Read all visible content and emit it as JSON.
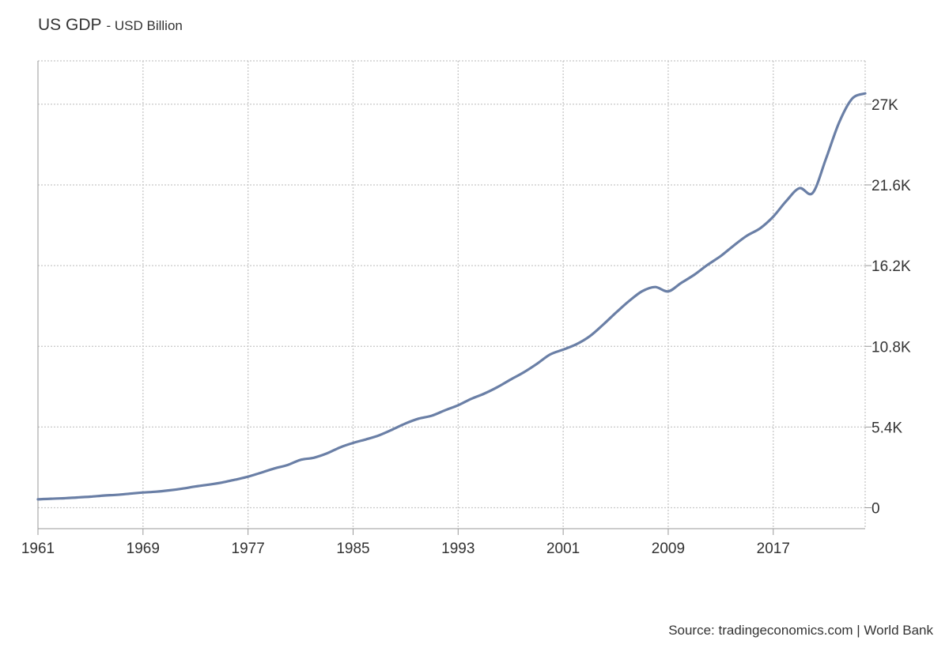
{
  "header": {
    "title": "US GDP",
    "subtitle": "- USD Billion"
  },
  "footer": {
    "source": "Source: tradingeconomics.com | World Bank"
  },
  "colors": {
    "line": "#6a7fa6",
    "grid": "#c8c8c8",
    "axis": "#999999",
    "text": "#333333"
  },
  "chart_data": {
    "type": "line",
    "title": "US GDP",
    "subtitle": "- USD Billion",
    "xlabel": "",
    "ylabel": "",
    "xlim": [
      1961,
      2024
    ],
    "ylim": [
      -1400,
      29900
    ],
    "x_ticks": [
      {
        "value": 1961,
        "label": "1961"
      },
      {
        "value": 1969,
        "label": "1969"
      },
      {
        "value": 1977,
        "label": "1977"
      },
      {
        "value": 1985,
        "label": "1985"
      },
      {
        "value": 1993,
        "label": "1993"
      },
      {
        "value": 2001,
        "label": "2001"
      },
      {
        "value": 2009,
        "label": "2009"
      },
      {
        "value": 2017,
        "label": "2017"
      }
    ],
    "y_ticks": [
      {
        "value": 0,
        "label": "0"
      },
      {
        "value": 5400,
        "label": "5.4K"
      },
      {
        "value": 10800,
        "label": "10.8K"
      },
      {
        "value": 16200,
        "label": "16.2K"
      },
      {
        "value": 21600,
        "label": "21.6K"
      },
      {
        "value": 27000,
        "label": "27K"
      }
    ],
    "y_axis_position": "right",
    "grid": true,
    "series": [
      {
        "color": "#6a7fa6",
        "x": [
          1961,
          1962,
          1963,
          1964,
          1965,
          1966,
          1967,
          1968,
          1969,
          1970,
          1971,
          1972,
          1973,
          1974,
          1975,
          1976,
          1977,
          1978,
          1979,
          1980,
          1981,
          1982,
          1983,
          1984,
          1985,
          1986,
          1987,
          1988,
          1989,
          1990,
          1991,
          1992,
          1993,
          1994,
          1995,
          1996,
          1997,
          1998,
          1999,
          2000,
          2001,
          2002,
          2003,
          2004,
          2005,
          2006,
          2007,
          2008,
          2009,
          2010,
          2011,
          2012,
          2013,
          2014,
          2015,
          2016,
          2017,
          2018,
          2019,
          2020,
          2021,
          2022,
          2023,
          2024
        ],
        "values": [
          563,
          605,
          638,
          686,
          743,
          815,
          861,
          942,
          1019,
          1073,
          1164,
          1279,
          1425,
          1545,
          1685,
          1873,
          2081,
          2351,
          2627,
          2857,
          3207,
          3343,
          3634,
          4037,
          4339,
          4580,
          4855,
          5236,
          5641,
          5963,
          6158,
          6520,
          6858,
          7287,
          7640,
          8073,
          8578,
          9063,
          9631,
          10252,
          10582,
          10936,
          11458,
          12214,
          13037,
          13815,
          14475,
          14770,
          14478,
          15049,
          15600,
          16254,
          16843,
          17551,
          18206,
          18695,
          19477,
          20533,
          21381,
          21060,
          23315,
          25744,
          27361,
          27720
        ]
      }
    ]
  }
}
